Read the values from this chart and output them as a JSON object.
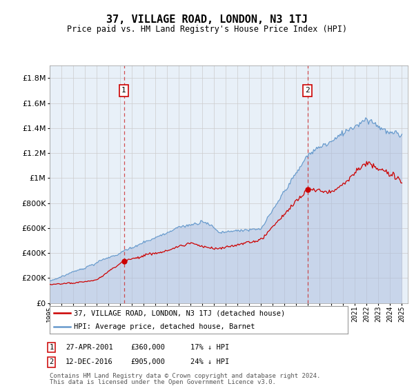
{
  "title": "37, VILLAGE ROAD, LONDON, N3 1TJ",
  "subtitle": "Price paid vs. HM Land Registry's House Price Index (HPI)",
  "legend_property": "37, VILLAGE ROAD, LONDON, N3 1TJ (detached house)",
  "legend_hpi": "HPI: Average price, detached house, Barnet",
  "sale1_date": "27-APR-2001",
  "sale1_price": 360000,
  "sale1_year": 2001.32,
  "sale2_date": "12-DEC-2016",
  "sale2_price": 905000,
  "sale2_year": 2016.95,
  "footnote_line1": "Contains HM Land Registry data © Crown copyright and database right 2024.",
  "footnote_line2": "This data is licensed under the Open Government Licence v3.0.",
  "ylim": [
    0,
    1900000
  ],
  "xlim_start": 1995.0,
  "xlim_end": 2025.5,
  "plot_bg": "#e8f0f8",
  "line_property_color": "#cc0000",
  "line_hpi_color": "#6699cc",
  "hpi_fill_color": "#aabbdd",
  "marker_color": "#cc0000",
  "dashed_line_color": "#cc3333",
  "grid_color": "#cccccc"
}
